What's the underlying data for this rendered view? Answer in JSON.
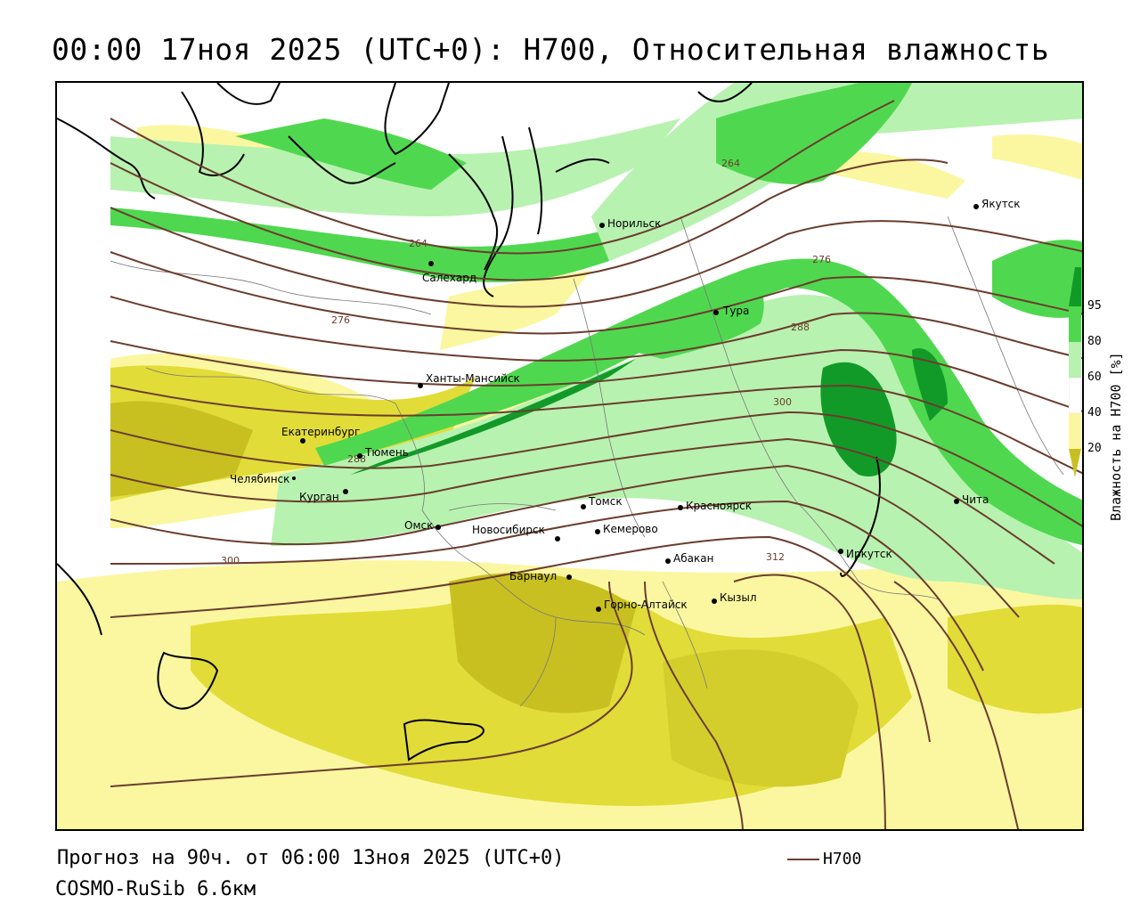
{
  "title": "00:00 17ноя 2025 (UTC+0): H700, Относительная влажность",
  "forecast_line": "Прогноз на 90ч. от 06:00 13ноя 2025 (UTC+0)",
  "model_line": "COSMO-RuSib 6.6км",
  "legend": {
    "line_label": "H700",
    "line_color": "#6b3d2e"
  },
  "colorbar": {
    "title": "Влажность на H700 [%]",
    "ticks": [
      "20",
      "40",
      "60",
      "80",
      "95"
    ],
    "colors": {
      "dry_dark": "#c8c020",
      "dry": "#e2dc38",
      "dry_light": "#fbf7a0",
      "neutral": "#ffffff",
      "moist_light": "#b8f2b0",
      "moist": "#4fd84f",
      "moist_dark": "#129a28"
    }
  },
  "contours": {
    "labels": [
      "264",
      "264",
      "276",
      "276",
      "288",
      "288",
      "300",
      "300",
      "312"
    ]
  },
  "cities": [
    {
      "name": "Норильск"
    },
    {
      "name": "Якутск"
    },
    {
      "name": "Салехард"
    },
    {
      "name": "Тура"
    },
    {
      "name": "Ханты-Мансийск"
    },
    {
      "name": "Екатеринбург"
    },
    {
      "name": "Тюмень"
    },
    {
      "name": "Челябинск"
    },
    {
      "name": "Курган"
    },
    {
      "name": "Омск"
    },
    {
      "name": "Томск"
    },
    {
      "name": "Новосибирск"
    },
    {
      "name": "Кемерово"
    },
    {
      "name": "Красноярск"
    },
    {
      "name": "Барнаул"
    },
    {
      "name": "Абакан"
    },
    {
      "name": "Горно-Алтайск"
    },
    {
      "name": "Кызыл"
    },
    {
      "name": "Иркутск"
    },
    {
      "name": "Чита"
    }
  ]
}
